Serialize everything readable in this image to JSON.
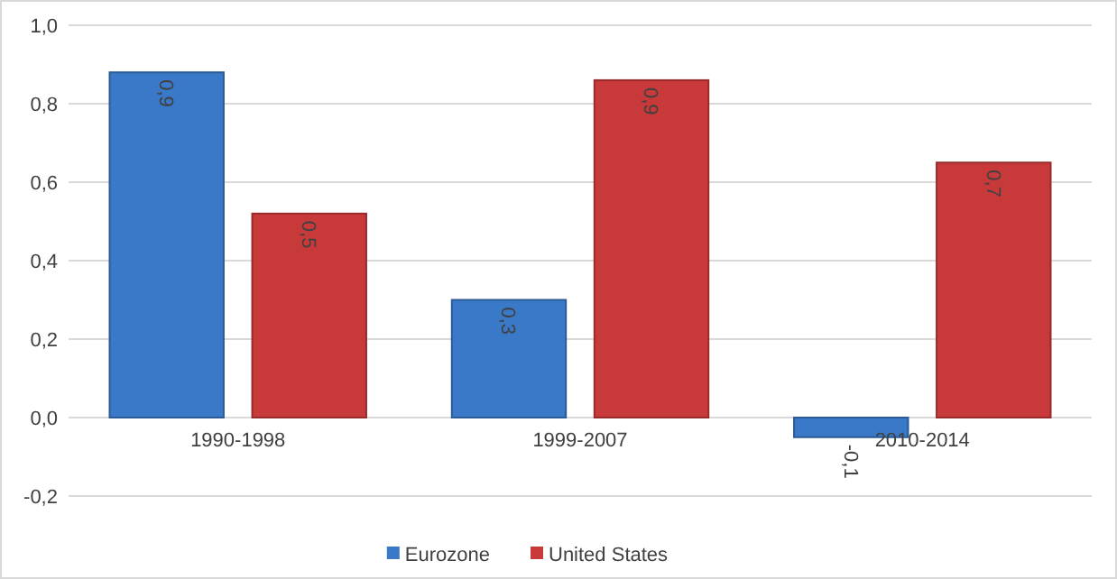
{
  "chart_data": {
    "type": "bar",
    "categories": [
      "1990-1998",
      "1999-2007",
      "2010-2014"
    ],
    "series": [
      {
        "name": "Eurozone",
        "color": "#3a78c8",
        "values": [
          0.88,
          0.3,
          -0.05
        ],
        "value_labels": [
          "0,9",
          "0,3",
          "-0,1"
        ]
      },
      {
        "name": "United States",
        "color": "#c83a3a",
        "values": [
          0.52,
          0.86,
          0.65
        ],
        "value_labels": [
          "0,5",
          "0,9",
          "0,7"
        ]
      }
    ],
    "ylim": [
      -0.2,
      1.0
    ],
    "yticks": [
      {
        "value": -0.2,
        "label": "-0,2"
      },
      {
        "value": 0,
        "label": "0,0"
      },
      {
        "value": 0.2,
        "label": "0,2"
      },
      {
        "value": 0.4,
        "label": "0,4"
      },
      {
        "value": 0.6,
        "label": "0,6"
      },
      {
        "value": 0.8,
        "label": "0,8"
      },
      {
        "value": 1.0,
        "label": "1,0"
      }
    ],
    "grid": "y",
    "legend": "bottom"
  }
}
